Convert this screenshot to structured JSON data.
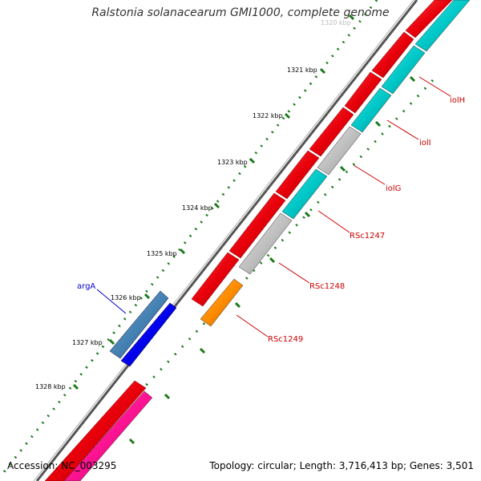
{
  "title": "Ralstonia solanacearum GMI1000, complete genome",
  "footer": {
    "accession_label": "Accession:",
    "accession": "NC_003295",
    "topology_label": "Topology:",
    "topology": "circular",
    "length_label": "Length:",
    "length": "3,716,413 bp",
    "genes_label": "Genes:",
    "genes": "3,501"
  },
  "ruler": {
    "labels": [
      "1320 kbp",
      "1321 kbp",
      "1322 kbp",
      "1323 kbp",
      "1324 kbp",
      "1325 kbp",
      "1326 kbp",
      "1327 kbp",
      "1328 kbp"
    ]
  },
  "genes": [
    {
      "label": "iolH",
      "color": "#cc0000"
    },
    {
      "label": "iolI",
      "color": "#cc0000"
    },
    {
      "label": "iolG",
      "color": "#cc0000"
    },
    {
      "label": "RSc1247",
      "color": "#cc0000"
    },
    {
      "label": "RSc1248",
      "color": "#cc0000"
    },
    {
      "label": "RSc1249",
      "color": "#cc0000"
    },
    {
      "label": "argA",
      "color": "#0000cc"
    }
  ],
  "colors": {
    "backbone": "#555555",
    "cds_forward": "#e8000b",
    "cyan": "#00c8c8",
    "grey": "#c0c0c0",
    "orange": "#ff8c00",
    "blue": "#0000ee",
    "steel_blue": "#4682b4",
    "pink": "#ff1493",
    "tick_green": "#228b22"
  }
}
